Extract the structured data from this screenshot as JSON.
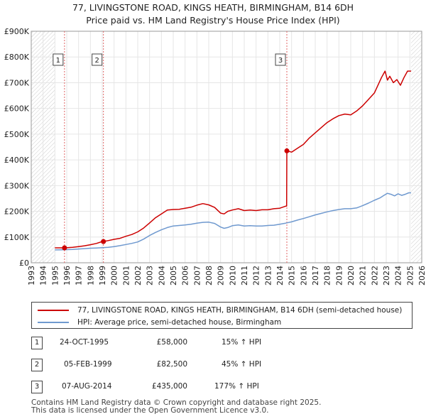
{
  "title_line1": "77, LIVINGSTONE ROAD, KINGS HEATH, BIRMINGHAM, B14 6DH",
  "title_line2": "Price paid vs. HM Land Registry's House Price Index (HPI)",
  "colors": {
    "property": "#cc0000",
    "hpi": "#6f99cf",
    "grid": "#e6e6e6",
    "hatch": "#cccccc"
  },
  "chart_data": {
    "type": "line",
    "xlim": [
      1993,
      2026
    ],
    "ylim": [
      0,
      900000
    ],
    "x_ticks": [
      1993,
      1994,
      1995,
      1996,
      1997,
      1998,
      1999,
      2000,
      2001,
      2002,
      2003,
      2004,
      2005,
      2006,
      2007,
      2008,
      2009,
      2010,
      2011,
      2012,
      2013,
      2014,
      2015,
      2016,
      2017,
      2018,
      2019,
      2020,
      2021,
      2022,
      2023,
      2024,
      2025,
      2026
    ],
    "y_ticks": [
      0,
      100000,
      200000,
      300000,
      400000,
      500000,
      600000,
      700000,
      800000,
      900000
    ],
    "y_tick_labels": [
      "£0",
      "£100K",
      "£200K",
      "£300K",
      "£400K",
      "£500K",
      "£600K",
      "£700K",
      "£800K",
      "£900K"
    ],
    "hatched_ranges": [
      [
        1993,
        1995.0
      ],
      [
        2025.1,
        2026
      ]
    ],
    "series": [
      {
        "name": "77, LIVINGSTONE ROAD, KINGS HEATH, BIRMINGHAM, B14 6DH (semi-detached house)",
        "color": "#cc0000",
        "x": [
          1995.0,
          1995.5,
          1995.81,
          1996.5,
          1997.0,
          1997.5,
          1998.0,
          1998.5,
          1999.0,
          1999.1,
          1999.5,
          2000.0,
          2000.5,
          2001.0,
          2001.5,
          2002.0,
          2002.5,
          2003.0,
          2003.5,
          2004.0,
          2004.5,
          2005.0,
          2005.5,
          2006.0,
          2006.5,
          2007.0,
          2007.5,
          2008.0,
          2008.5,
          2009.0,
          2009.3,
          2009.6,
          2010.0,
          2010.5,
          2011.0,
          2011.5,
          2012.0,
          2012.5,
          2013.0,
          2013.5,
          2014.0,
          2014.5,
          2014.58,
          2014.6,
          2015.0,
          2015.5,
          2016.0,
          2016.5,
          2017.0,
          2017.5,
          2018.0,
          2018.5,
          2019.0,
          2019.5,
          2020.0,
          2020.5,
          2021.0,
          2021.5,
          2022.0,
          2022.3,
          2022.6,
          2022.9,
          2023.1,
          2023.3,
          2023.6,
          2023.9,
          2024.2,
          2024.5,
          2024.8,
          2025.1
        ],
        "values": [
          58000,
          58000,
          58000,
          60000,
          63000,
          66000,
          70000,
          75000,
          82500,
          82500,
          86000,
          91000,
          95000,
          103000,
          110000,
          120000,
          135000,
          155000,
          175000,
          190000,
          205000,
          207000,
          208000,
          212000,
          216000,
          224000,
          230000,
          225000,
          215000,
          193000,
          190000,
          200000,
          205000,
          210000,
          203000,
          205000,
          203000,
          206000,
          206000,
          210000,
          212000,
          220000,
          220000,
          435000,
          430000,
          445000,
          460000,
          485000,
          505000,
          525000,
          545000,
          560000,
          572000,
          578000,
          575000,
          590000,
          610000,
          635000,
          660000,
          690000,
          720000,
          745000,
          710000,
          725000,
          700000,
          712000,
          690000,
          720000,
          745000,
          745000
        ]
      },
      {
        "name": "HPI: Average price, semi-detached house, Birmingham",
        "color": "#6f99cf",
        "x": [
          1995.0,
          1995.5,
          1996.0,
          1996.5,
          1997.0,
          1997.5,
          1998.0,
          1998.5,
          1999.0,
          1999.5,
          2000.0,
          2000.5,
          2001.0,
          2001.5,
          2002.0,
          2002.5,
          2003.0,
          2003.5,
          2004.0,
          2004.5,
          2005.0,
          2005.5,
          2006.0,
          2006.5,
          2007.0,
          2007.5,
          2008.0,
          2008.5,
          2009.0,
          2009.3,
          2009.6,
          2010.0,
          2010.5,
          2011.0,
          2011.5,
          2012.0,
          2012.5,
          2013.0,
          2013.5,
          2014.0,
          2014.5,
          2015.0,
          2015.5,
          2016.0,
          2016.5,
          2017.0,
          2017.5,
          2018.0,
          2018.5,
          2019.0,
          2019.5,
          2020.0,
          2020.5,
          2021.0,
          2021.5,
          2022.0,
          2022.5,
          2022.8,
          2023.1,
          2023.4,
          2023.7,
          2024.0,
          2024.3,
          2024.6,
          2024.9,
          2025.1
        ],
        "values": [
          50000,
          50500,
          51000,
          52000,
          53500,
          55000,
          56500,
          57500,
          58500,
          60000,
          63000,
          66500,
          71000,
          75500,
          81000,
          92000,
          106000,
          118000,
          128000,
          137000,
          143000,
          145000,
          147000,
          150000,
          154000,
          157000,
          158000,
          153000,
          139000,
          134000,
          137000,
          144000,
          147000,
          143000,
          144000,
          143000,
          143000,
          145000,
          146000,
          150000,
          154000,
          159000,
          166000,
          172000,
          179000,
          186000,
          192000,
          198000,
          203000,
          207000,
          210000,
          210000,
          213000,
          222000,
          232000,
          243000,
          253000,
          262000,
          270000,
          266000,
          260000,
          268000,
          262000,
          266000,
          272000,
          272000
        ]
      }
    ],
    "sale_points": [
      {
        "label": "1",
        "x": 1995.81,
        "value": 58000
      },
      {
        "label": "2",
        "x": 1999.1,
        "value": 82500
      },
      {
        "label": "3",
        "x": 2014.6,
        "value": 435000
      }
    ]
  },
  "legend": {
    "property_label": "77, LIVINGSTONE ROAD, KINGS HEATH, BIRMINGHAM, B14 6DH (semi-detached house)",
    "hpi_label": "HPI: Average price, semi-detached house, Birmingham"
  },
  "transactions": [
    {
      "num": "1",
      "date": "24-OCT-1995",
      "price": "£58,000",
      "change": "15% ↑ HPI"
    },
    {
      "num": "2",
      "date": "05-FEB-1999",
      "price": "£82,500",
      "change": "45% ↑ HPI"
    },
    {
      "num": "3",
      "date": "07-AUG-2014",
      "price": "£435,000",
      "change": "177% ↑ HPI"
    }
  ],
  "footer_line1": "Contains HM Land Registry data © Crown copyright and database right 2025.",
  "footer_line2": "This data is licensed under the Open Government Licence v3.0."
}
